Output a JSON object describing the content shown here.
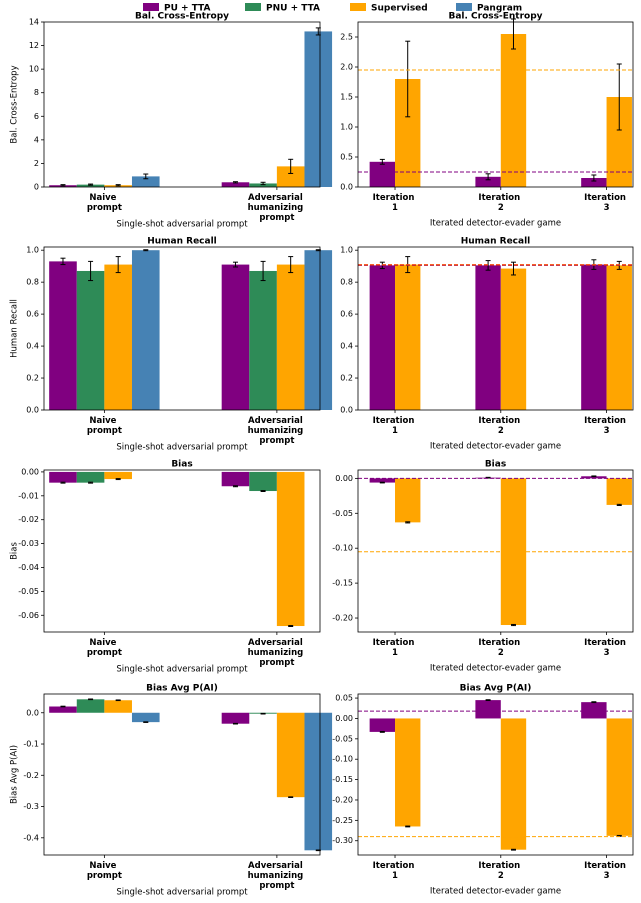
{
  "chart_data": [
    {
      "type": "bar",
      "title": "Bal. Cross-Entropy",
      "ylabel": "Bal. Cross-Entropy",
      "xlabel": "Single-shot adversarial prompt",
      "categories": [
        "Naive prompt",
        "Adversarial humanizing prompt"
      ],
      "series": [
        {
          "name": "PU + TTA",
          "color": "#800080",
          "values": [
            0.15,
            0.4
          ],
          "errors": [
            0.05,
            0.05
          ]
        },
        {
          "name": "PNU + TTA",
          "color": "#2e8b57",
          "values": [
            0.2,
            0.3
          ],
          "errors": [
            0.05,
            0.1
          ]
        },
        {
          "name": "Supervised",
          "color": "#ffa500",
          "values": [
            0.15,
            1.75
          ],
          "errors": [
            0.05,
            0.6
          ]
        },
        {
          "name": "Pangram",
          "color": "#4682b4",
          "values": [
            0.9,
            13.2
          ],
          "errors": [
            0.2,
            0.3
          ]
        }
      ],
      "ylim": [
        0,
        14
      ],
      "yticks": [
        0,
        2,
        4,
        6,
        8,
        10,
        12,
        14
      ]
    },
    {
      "type": "bar",
      "title": "Bal. Cross-Entropy",
      "xlabel": "Iterated detector-evader game",
      "categories": [
        "Iteration 1",
        "Iteration 2",
        "Iteration 3"
      ],
      "series": [
        {
          "color": "#800080",
          "values": [
            0.42,
            0.17,
            0.15
          ],
          "errors": [
            0.04,
            0.05,
            0.05
          ]
        },
        {
          "color": "#ffa500",
          "values": [
            1.8,
            2.55,
            1.5
          ],
          "errors": [
            0.63,
            0.25,
            0.55
          ]
        }
      ],
      "reference_lines": [
        {
          "value": 1.95,
          "color": "#ffa500"
        },
        {
          "value": 0.25,
          "color": "#800080"
        }
      ],
      "ylim": [
        0,
        2.75
      ],
      "yticks": [
        {
          "value": 0,
          "label": "0.0"
        },
        0.5,
        {
          "value": 1,
          "label": "1.0"
        },
        1.5,
        {
          "value": 2,
          "label": "2.0"
        },
        2.5
      ]
    },
    {
      "type": "bar",
      "title": "Human Recall",
      "ylabel": "Human Recall",
      "xlabel": "Single-shot adversarial prompt",
      "categories": [
        "Naive prompt",
        "Adversarial humanizing prompt"
      ],
      "series": [
        {
          "color": "#800080",
          "values": [
            0.93,
            0.91
          ],
          "errors": [
            0.02,
            0.015
          ]
        },
        {
          "color": "#2e8b57",
          "values": [
            0.87,
            0.87
          ],
          "errors": [
            0.06,
            0.06
          ]
        },
        {
          "color": "#ffa500",
          "values": [
            0.91,
            0.91
          ],
          "errors": [
            0.05,
            0.05
          ]
        },
        {
          "color": "#4682b4",
          "values": [
            1.0,
            1.0
          ],
          "errors": [
            0.003,
            0.003
          ]
        }
      ],
      "ylim": [
        0,
        1.02
      ],
      "yticks": [
        {
          "value": 0,
          "label": "0.0"
        },
        0.2,
        0.4,
        0.6,
        0.8,
        {
          "value": 1,
          "label": "1.0"
        }
      ]
    },
    {
      "type": "bar",
      "title": "Human Recall",
      "xlabel": "Iterated detector-evader game",
      "categories": [
        "Iteration 1",
        "Iteration 2",
        "Iteration 3"
      ],
      "series": [
        {
          "color": "#800080",
          "values": [
            0.905,
            0.905,
            0.91
          ],
          "errors": [
            0.02,
            0.03,
            0.03
          ]
        },
        {
          "color": "#ffa500",
          "values": [
            0.91,
            0.885,
            0.905
          ],
          "errors": [
            0.05,
            0.04,
            0.025
          ]
        }
      ],
      "reference_lines": [
        {
          "value": 0.91,
          "color": "#ff5000"
        },
        {
          "value": 0.905,
          "color": "#c0203a"
        }
      ],
      "ylim": [
        0,
        1.02
      ],
      "yticks": [
        {
          "value": 0,
          "label": "0.0"
        },
        0.2,
        0.4,
        0.6,
        0.8,
        {
          "value": 1,
          "label": "1.0"
        }
      ]
    },
    {
      "type": "bar",
      "title": "Bias",
      "ylabel": "Bias",
      "xlabel": "Single-shot adversarial prompt",
      "categories": [
        "Naive prompt",
        "Adversarial humanizing prompt"
      ],
      "series": [
        {
          "color": "#800080",
          "values": [
            -0.0045,
            -0.006
          ],
          "errors": [
            0.0002,
            0.0002
          ]
        },
        {
          "color": "#2e8b57",
          "values": [
            -0.0045,
            -0.008
          ],
          "errors": [
            0.0002,
            0.0002
          ]
        },
        {
          "color": "#ffa500",
          "values": [
            -0.003,
            -0.0645
          ],
          "errors": [
            0.0002,
            0.0002
          ]
        },
        {
          "color": "#4682b4",
          "values": [
            null,
            null
          ],
          "errors": [
            null,
            null
          ]
        }
      ],
      "ylim": [
        -0.067,
        0.0008
      ],
      "yticks": [
        {
          "value": 0,
          "label": "0.00"
        },
        -0.01,
        -0.02,
        -0.03,
        -0.04,
        -0.05,
        -0.06
      ]
    },
    {
      "type": "bar",
      "title": "Bias",
      "xlabel": "Iterated detector-evader game",
      "categories": [
        "Iteration 1",
        "Iteration 2",
        "Iteration 3"
      ],
      "series": [
        {
          "color": "#800080",
          "values": [
            -0.006,
            0.001,
            0.003
          ],
          "errors": [
            0.0005,
            0.0005,
            0.0005
          ]
        },
        {
          "color": "#ffa500",
          "values": [
            -0.063,
            -0.21,
            -0.038
          ],
          "errors": [
            0.0008,
            0.0008,
            0.0008
          ]
        }
      ],
      "reference_lines": [
        {
          "value": 0.0,
          "color": "#800080"
        },
        {
          "value": -0.105,
          "color": "#ffa500"
        }
      ],
      "ylim": [
        -0.22,
        0.012
      ],
      "yticks": [
        {
          "value": 0,
          "label": "0.00"
        },
        -0.05,
        {
          "value": -0.1,
          "label": "-0.10"
        },
        -0.15,
        {
          "value": -0.2,
          "label": "-0.20"
        }
      ]
    },
    {
      "type": "bar",
      "title": "Bias Avg P(AI)",
      "ylabel": "Bias Avg P(AI)",
      "xlabel": "Single-shot adversarial prompt",
      "categories": [
        "Naive prompt",
        "Adversarial humanizing prompt"
      ],
      "series": [
        {
          "color": "#800080",
          "values": [
            0.02,
            -0.035
          ],
          "errors": [
            0.001,
            0.001
          ]
        },
        {
          "color": "#2e8b57",
          "values": [
            0.043,
            -0.003
          ],
          "errors": [
            0.001,
            0.001
          ]
        },
        {
          "color": "#ffa500",
          "values": [
            0.04,
            -0.27
          ],
          "errors": [
            0.001,
            0.001
          ]
        },
        {
          "color": "#4682b4",
          "values": [
            -0.03,
            -0.44
          ],
          "errors": [
            0.001,
            0.001
          ]
        }
      ],
      "ylim": [
        -0.455,
        0.06
      ],
      "yticks": [
        {
          "value": 0,
          "label": "0.0"
        },
        -0.1,
        -0.2,
        -0.3,
        -0.4
      ]
    },
    {
      "type": "bar",
      "title": "Bias Avg P(AI)",
      "xlabel": "Iterated detector-evader game",
      "categories": [
        "Iteration 1",
        "Iteration 2",
        "Iteration 3"
      ],
      "series": [
        {
          "color": "#800080",
          "values": [
            -0.033,
            0.045,
            0.04
          ],
          "errors": [
            0.001,
            0.001,
            0.001
          ]
        },
        {
          "color": "#ffa500",
          "values": [
            -0.265,
            -0.322,
            -0.288
          ],
          "errors": [
            0.001,
            0.001,
            0.001
          ]
        }
      ],
      "reference_lines": [
        {
          "value": 0.018,
          "color": "#800080"
        },
        {
          "value": -0.29,
          "color": "#ffa500"
        }
      ],
      "ylim": [
        -0.335,
        0.06
      ],
      "yticks": [
        0.05,
        {
          "value": 0,
          "label": "0.00"
        },
        -0.05,
        {
          "value": -0.1,
          "label": "-0.10"
        },
        -0.15,
        {
          "value": -0.2,
          "label": "-0.20"
        },
        -0.25,
        {
          "value": -0.3,
          "label": "-0.30"
        }
      ]
    }
  ]
}
